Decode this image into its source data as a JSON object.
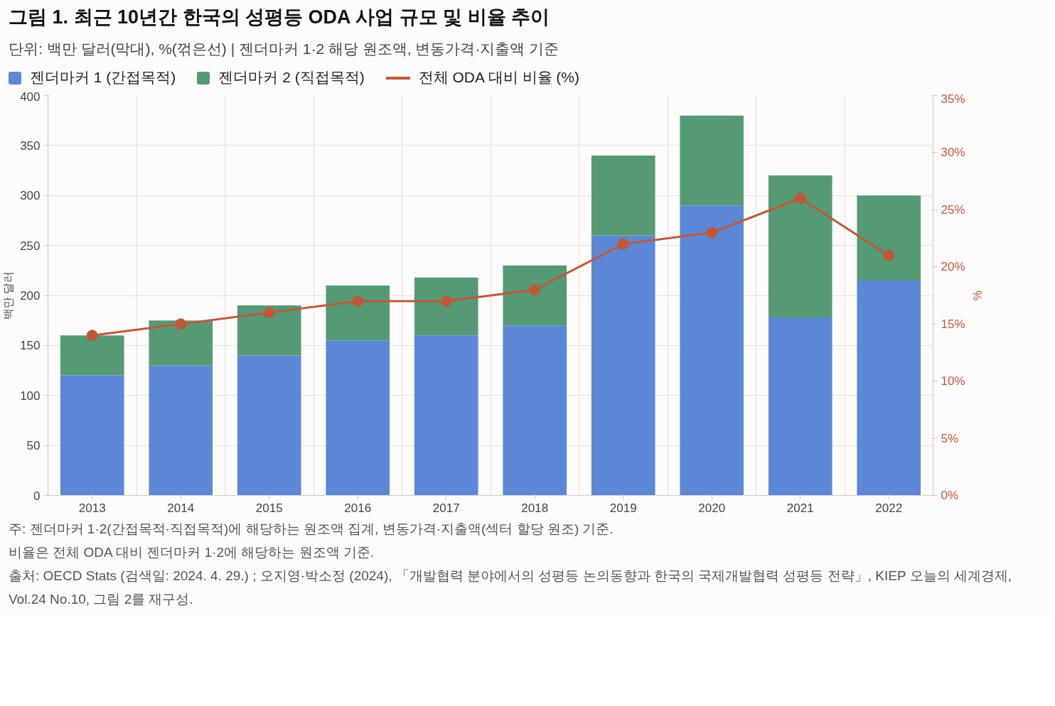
{
  "chart_data": {
    "type": "bar",
    "stacked": true,
    "title": "그림 1. 최근 10년간 한국의 성평등 ODA 사업 규모 및 비율 추이",
    "subtitle": "단위: 백만 달러(막대), %(꺾은선) | 젠더마커 1·2 해당 원조액, 변동가격·지출액 기준",
    "ylabel": "백만 달러",
    "y2label": "%",
    "categories": [
      "2013",
      "2014",
      "2015",
      "2016",
      "2017",
      "2018",
      "2019",
      "2020",
      "2021",
      "2022"
    ],
    "series": [
      {
        "name": "젠더마커 1 (간접목적)",
        "color": "#5b87d6",
        "values": [
          120,
          130,
          140,
          155,
          160,
          170,
          260,
          290,
          178,
          215
        ]
      },
      {
        "name": "젠더마커 2 (직접목적)",
        "color": "#559a74",
        "values": [
          40,
          45,
          50,
          55,
          58,
          60,
          80,
          90,
          142,
          85
        ]
      },
      {
        "name": "전체 ODA 대비 비율 (%)",
        "type": "line",
        "axis": "y2",
        "marker": "circle",
        "color": "#c0583a",
        "values": [
          14,
          15,
          16,
          17,
          17,
          18,
          22,
          23,
          26,
          21
        ]
      }
    ],
    "ylim": [
      0,
      400
    ],
    "yticks": [
      0,
      50,
      100,
      150,
      200,
      250,
      300,
      350,
      400
    ],
    "y2lim": [
      0,
      35
    ],
    "y2ticks": [
      {
        "value": 0,
        "label": "0%"
      },
      {
        "value": 5,
        "label": "5%"
      },
      {
        "value": 10,
        "label": "10%"
      },
      {
        "value": 15,
        "label": "15%"
      },
      {
        "value": 20,
        "label": "20%"
      },
      {
        "value": 25,
        "label": "25%"
      },
      {
        "value": 30,
        "label": "30%"
      },
      {
        "value": 35,
        "label": "35%"
      }
    ],
    "grid": true,
    "legend": "top left",
    "annotations": [
      "주: 젠더마커 1·2(간접목적·직접목적)에 해당하는 원조액 집계, 변동가격·지출액(섹터 할당 원조) 기준.",
      "비율은 전체 ODA 대비 젠더마커 1·2에 해당하는 원조액 기준.",
      "출처: OECD Stats (검색일: 2024. 4. 29.) ; 오지영·박소정 (2024), 「개발협력 분야에서의 성평등 논의동향과 한국의 국제개발협력 성평등 전략」, KIEP 오늘의 세계경제, Vol.24 No.10, 그림 2를 재구성."
    ]
  }
}
